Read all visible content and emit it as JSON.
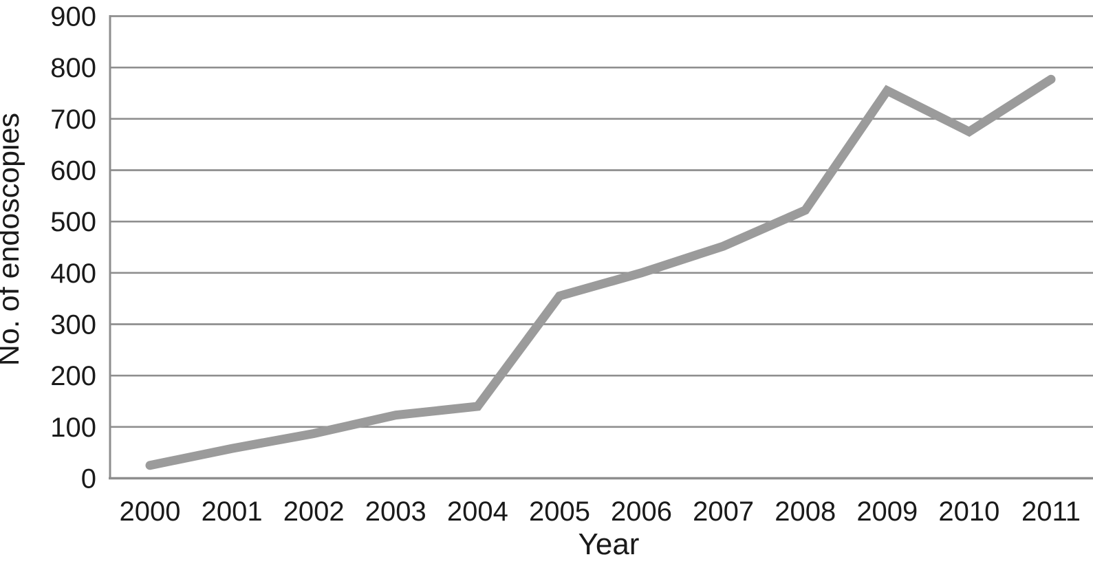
{
  "chart_data": {
    "type": "line",
    "title": "",
    "xlabel": "Year",
    "ylabel": "No. of endoscopies",
    "categories": [
      "2000",
      "2001",
      "2002",
      "2003",
      "2004",
      "2005",
      "2006",
      "2007",
      "2008",
      "2009",
      "2010",
      "2011"
    ],
    "series": [
      {
        "name": "No. of endoscopies",
        "values": [
          25,
          58,
          87,
          123,
          140,
          355,
          400,
          452,
          522,
          755,
          675,
          777
        ]
      }
    ],
    "ylim": [
      0,
      900
    ],
    "yticks": [
      0,
      100,
      200,
      300,
      400,
      500,
      600,
      700,
      800,
      900
    ],
    "grid": "horizontal",
    "legend_position": "none",
    "colors": {
      "line": "#9b9b9b",
      "grid": "#8e8e8e",
      "axis": "#8e8e8e",
      "text": "#1a1a1a",
      "background": "#ffffff"
    }
  }
}
